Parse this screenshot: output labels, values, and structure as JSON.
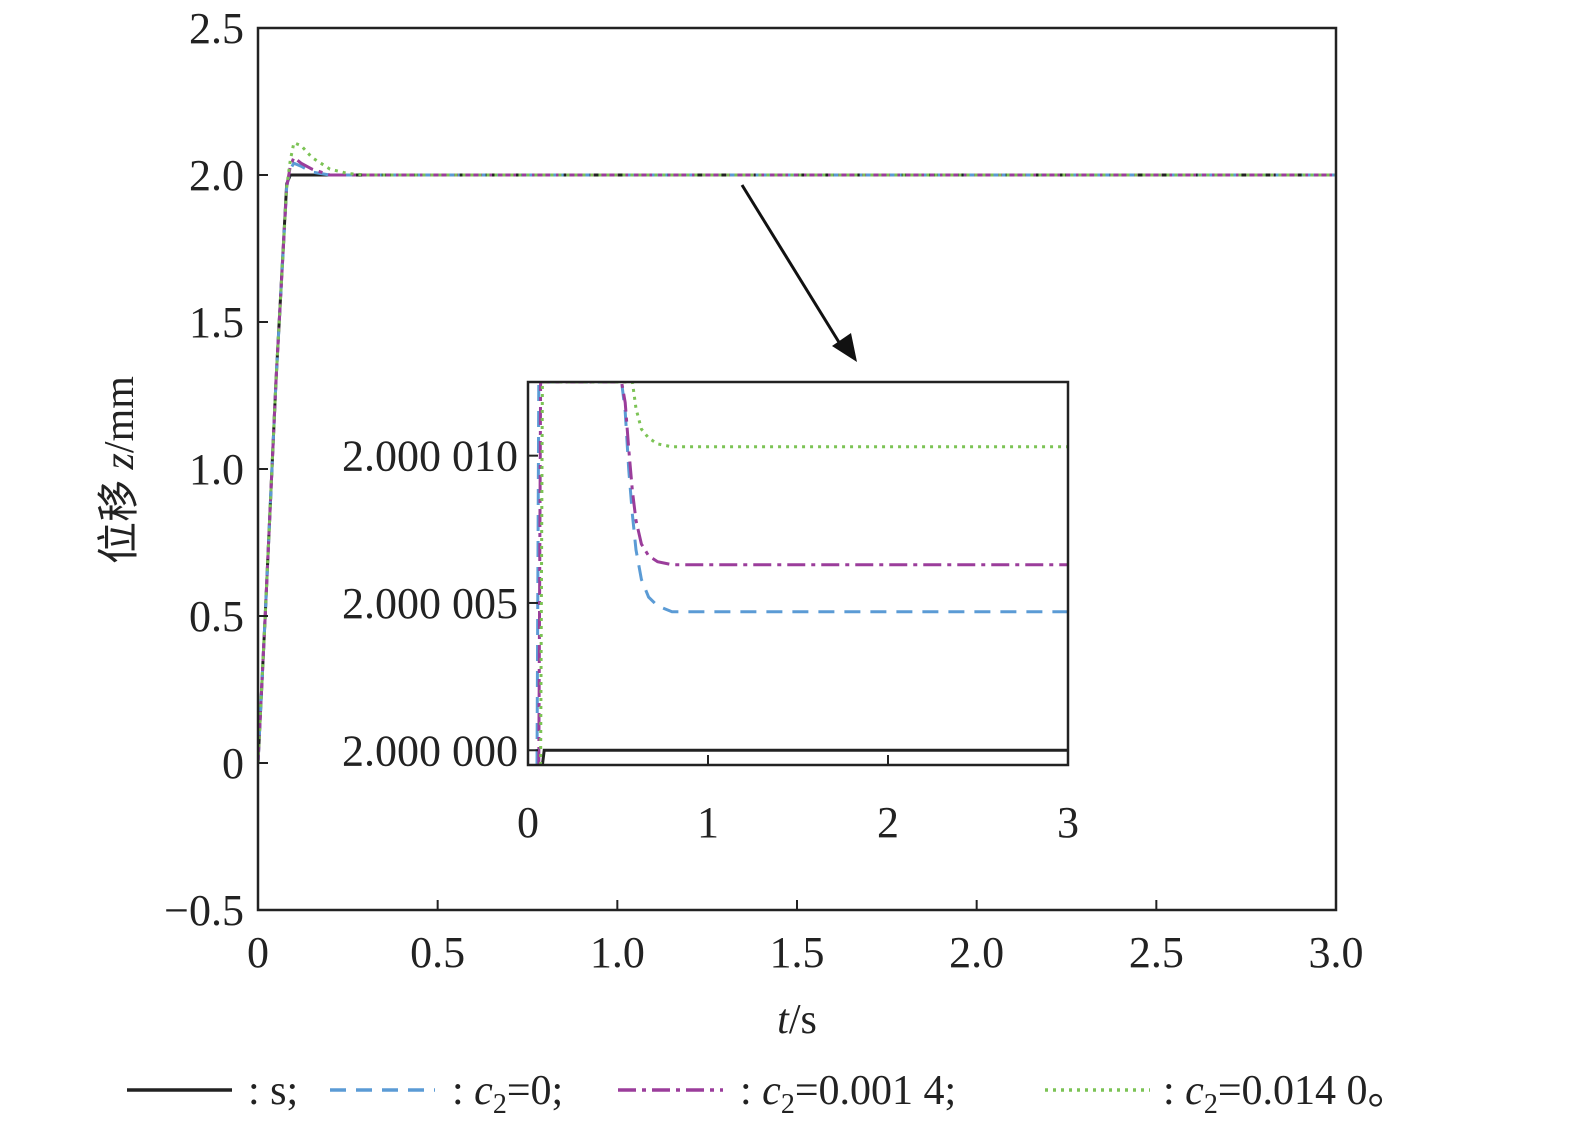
{
  "chart_data": [
    {
      "type": "line",
      "xlabel_italic": "t",
      "xlabel_unit": "/s",
      "ylabel_cjk": "位移",
      "ylabel_italic": "z",
      "ylabel_unit": "/mm",
      "xlim": [
        0,
        3
      ],
      "ylim": [
        -0.5,
        2.5
      ],
      "x_ticks": [
        0,
        0.5,
        1.0,
        1.5,
        2.0,
        2.5,
        3.0
      ],
      "x_tick_labels": [
        "0",
        "0.5",
        "1.0",
        "1.5",
        "2.0",
        "2.5",
        "3.0"
      ],
      "y_ticks": [
        -0.5,
        0,
        0.5,
        1.0,
        1.5,
        2.0,
        2.5
      ],
      "y_tick_labels": [
        "−0.5",
        "0",
        "0.5",
        "1.0",
        "1.5",
        "2.0",
        "2.5"
      ],
      "series": [
        {
          "key": "s",
          "color": "#222222",
          "dash": "",
          "x": [
            0,
            0.02,
            0.05,
            0.08,
            0.09,
            0.1,
            0.2,
            0.5,
            1.0,
            2.0,
            3.0
          ],
          "y": [
            0,
            0.5,
            1.3,
            1.97,
            2.0,
            2.0,
            2.0,
            2.0,
            2.0,
            2.0,
            2.0
          ]
        },
        {
          "key": "c2_0",
          "color": "#5b9bd5",
          "dash": "16,10",
          "x": [
            0,
            0.02,
            0.05,
            0.08,
            0.09,
            0.1,
            0.12,
            0.15,
            0.2,
            0.3,
            0.5,
            1.0,
            2.0,
            3.0
          ],
          "y": [
            0,
            0.5,
            1.3,
            1.96,
            2.02,
            2.04,
            2.03,
            2.01,
            2.0,
            2.0,
            2.0,
            2.0,
            2.0,
            2.0
          ]
        },
        {
          "key": "c2_0.0014",
          "color": "#9b3d9b",
          "dash": "18,6,4,6",
          "x": [
            0,
            0.02,
            0.05,
            0.08,
            0.09,
            0.1,
            0.12,
            0.15,
            0.2,
            0.3,
            0.5,
            1.0,
            2.0,
            3.0
          ],
          "y": [
            0,
            0.5,
            1.3,
            1.96,
            2.03,
            2.06,
            2.04,
            2.02,
            2.0,
            2.0,
            2.0,
            2.0,
            2.0,
            2.0
          ]
        },
        {
          "key": "c2_0.0140",
          "color": "#7cc355",
          "dash": "3,5",
          "x": [
            0,
            0.02,
            0.05,
            0.08,
            0.09,
            0.1,
            0.12,
            0.15,
            0.2,
            0.25,
            0.3,
            0.5,
            1.0,
            2.0,
            3.0
          ],
          "y": [
            0,
            0.5,
            1.3,
            1.96,
            2.05,
            2.11,
            2.1,
            2.06,
            2.02,
            2.005,
            2.0,
            2.0,
            2.0,
            2.0,
            2.0
          ]
        }
      ]
    },
    {
      "type": "line",
      "xlim": [
        0,
        3
      ],
      "ylim": [
        1.9999995,
        2.0000125
      ],
      "x_ticks": [
        0,
        1,
        2,
        3
      ],
      "x_tick_labels": [
        "0",
        "1",
        "2",
        "3"
      ],
      "y_ticks": [
        2.0,
        2.000005,
        2.00001
      ],
      "y_tick_labels": [
        "2.000 000",
        "2.000 005",
        "2.000 010"
      ],
      "series": [
        {
          "key": "s",
          "color": "#222222",
          "dash": "",
          "x": [
            0.08,
            0.09,
            0.1,
            3.0
          ],
          "y": [
            1.9999995,
            2.0,
            2.0,
            2.0
          ]
        },
        {
          "key": "c2_0",
          "color": "#5b9bd5",
          "dash": "16,10",
          "x": [
            0.05,
            0.06,
            0.52,
            0.54,
            0.56,
            0.58,
            0.6,
            0.63,
            0.67,
            0.72,
            0.8,
            0.9,
            3.0
          ],
          "y": [
            1.9999995,
            2.0000125,
            2.0000125,
            2.0000115,
            2.0000095,
            2.000008,
            2.0000068,
            2.0000058,
            2.0000052,
            2.0000049,
            2.0000047,
            2.0000047,
            2.0000047
          ]
        },
        {
          "key": "c2_0.0014",
          "color": "#9b3d9b",
          "dash": "18,6,4,6",
          "x": [
            0.06,
            0.07,
            0.52,
            0.54,
            0.56,
            0.58,
            0.6,
            0.63,
            0.67,
            0.72,
            0.8,
            0.9,
            3.0
          ],
          "y": [
            1.9999995,
            2.0000125,
            2.0000125,
            2.0000118,
            2.0000102,
            2.0000088,
            2.0000078,
            2.000007,
            2.0000066,
            2.0000064,
            2.0000063,
            2.0000063,
            2.0000063
          ]
        },
        {
          "key": "c2_0.0140",
          "color": "#7cc355",
          "dash": "3,5",
          "x": [
            0.07,
            0.08,
            0.58,
            0.6,
            0.63,
            0.67,
            0.72,
            0.8,
            0.9,
            3.0
          ],
          "y": [
            1.9999995,
            2.0000125,
            2.0000125,
            2.0000116,
            2.0000109,
            2.0000106,
            2.0000104,
            2.0000103,
            2.0000103,
            2.0000103
          ]
        }
      ]
    }
  ],
  "legend": {
    "items": [
      {
        "key": "s",
        "color": "#222222",
        "dash": "",
        "sep": ": ",
        "text": "s;",
        "sub_var": "",
        "sub_idx": "",
        "eq": ""
      },
      {
        "key": "c2_0",
        "color": "#5b9bd5",
        "dash": "16,10",
        "sep": ": ",
        "sub_var": "c",
        "sub_idx": "2",
        "eq": "=0;",
        "text": ""
      },
      {
        "key": "c2_0.0014",
        "color": "#9b3d9b",
        "dash": "18,6,4,6",
        "sep": ": ",
        "sub_var": "c",
        "sub_idx": "2",
        "eq": "=0.001 4;",
        "text": ""
      },
      {
        "key": "c2_0.0140",
        "color": "#7cc355",
        "dash": "3,5",
        "sep": ": ",
        "sub_var": "c",
        "sub_idx": "2",
        "eq": "=0.014 0。",
        "text": ""
      }
    ]
  }
}
